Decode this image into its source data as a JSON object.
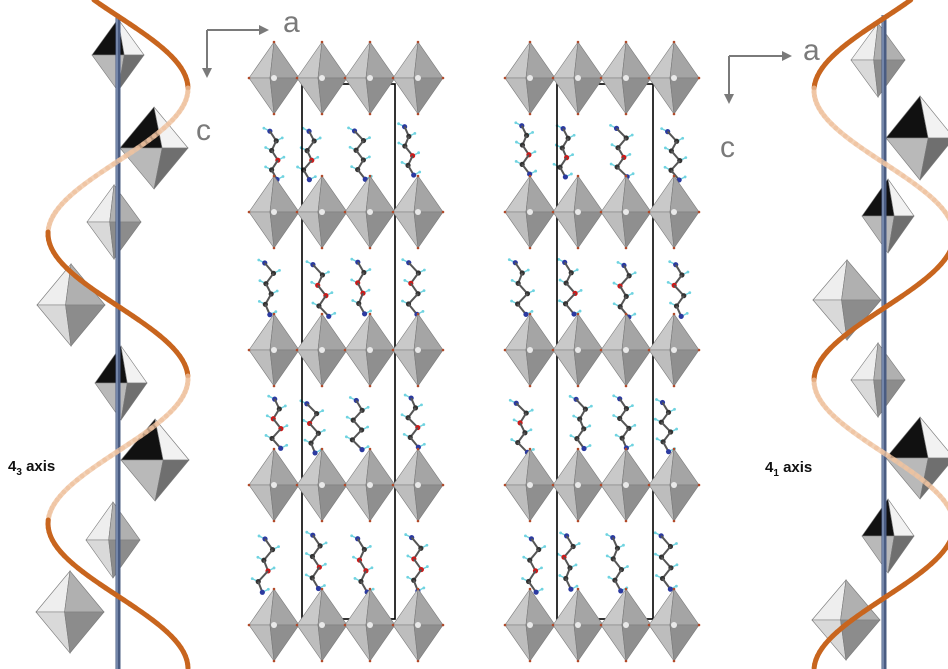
{
  "left_label": {
    "main": "4",
    "sub": "3",
    "text": " axis"
  },
  "right_label": {
    "main": "4",
    "sub": "1",
    "text": " axis"
  },
  "left_panel_axes": {
    "horizontal": "a",
    "vertical": "c"
  },
  "right_panel_axes": {
    "horizontal": "a",
    "vertical": "c"
  },
  "colors": {
    "helix": "#c8651e",
    "screw_axis": "#4a5c82",
    "octahedron_light": "#d4d4d4",
    "octahedron_dark": "#111111",
    "carbon": "#333333",
    "oxygen": "#cc1a1a",
    "nitrogen": "#2b3aa0",
    "hydrogen": "#6fd3e0",
    "cell_edge": "#000000"
  }
}
